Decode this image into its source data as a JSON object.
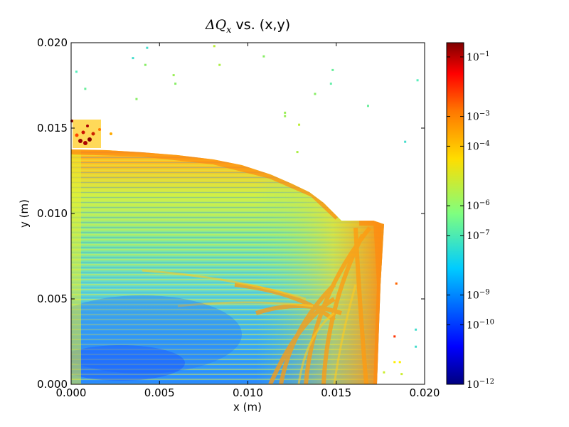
{
  "chart_data": {
    "type": "heatmap",
    "title_prefix": "ΔQ",
    "title_subscript": "x",
    "title_suffix": " vs. (x,y)",
    "xlabel": "x (m)",
    "ylabel": "y (m)",
    "xlim": [
      0.0,
      0.02
    ],
    "ylim": [
      0.0,
      0.02
    ],
    "x_ticks": [
      "0.000",
      "0.005",
      "0.010",
      "0.015",
      "0.020"
    ],
    "y_ticks": [
      "0.000",
      "0.005",
      "0.010",
      "0.015",
      "0.020"
    ],
    "x_tick_values": [
      0.0,
      0.005,
      0.01,
      0.015,
      0.02
    ],
    "y_tick_values": [
      0.0,
      0.005,
      0.01,
      0.015,
      0.02
    ],
    "colorbar": {
      "scale": "log",
      "range": [
        1e-12,
        0.3
      ],
      "tick_labels": [
        {
          "base": "10",
          "exp": "−1",
          "value": 0.1
        },
        {
          "base": "10",
          "exp": "−3",
          "value": 0.001
        },
        {
          "base": "10",
          "exp": "−4",
          "value": 0.0001
        },
        {
          "base": "10",
          "exp": "−6",
          "value": 1e-06
        },
        {
          "base": "10",
          "exp": "−7",
          "value": 1e-07
        },
        {
          "base": "10",
          "exp": "−9",
          "value": 1e-09
        },
        {
          "base": "10",
          "exp": "−10",
          "value": 1e-10
        },
        {
          "base": "10",
          "exp": "−12",
          "value": 1e-12
        }
      ],
      "colormap": "jet"
    },
    "scattered_points": [
      {
        "x": 0.0003,
        "y": 0.0183,
        "c": "#55eebb"
      },
      {
        "x": 0.0008,
        "y": 0.0173,
        "c": "#66ee99"
      },
      {
        "x": 0.0035,
        "y": 0.0191,
        "c": "#44ddcc"
      },
      {
        "x": 0.0043,
        "y": 0.0197,
        "c": "#44ddcc"
      },
      {
        "x": 0.0042,
        "y": 0.0187,
        "c": "#88ee66"
      },
      {
        "x": 0.0058,
        "y": 0.0181,
        "c": "#99ee55"
      },
      {
        "x": 0.0059,
        "y": 0.0176,
        "c": "#88ee66"
      },
      {
        "x": 0.0081,
        "y": 0.0198,
        "c": "#bbee33"
      },
      {
        "x": 0.0084,
        "y": 0.0187,
        "c": "#aaee44"
      },
      {
        "x": 0.0109,
        "y": 0.0192,
        "c": "#88ee66"
      },
      {
        "x": 0.0037,
        "y": 0.0167,
        "c": "#88ee66"
      },
      {
        "x": 0.0138,
        "y": 0.017,
        "c": "#88ee66"
      },
      {
        "x": 0.0147,
        "y": 0.0176,
        "c": "#66eeaa"
      },
      {
        "x": 0.0148,
        "y": 0.0184,
        "c": "#66ee99"
      },
      {
        "x": 0.0168,
        "y": 0.0163,
        "c": "#66ee99"
      },
      {
        "x": 0.0196,
        "y": 0.0178,
        "c": "#55eebb"
      },
      {
        "x": 0.0189,
        "y": 0.0142,
        "c": "#44ddcc"
      },
      {
        "x": 0.0121,
        "y": 0.0159,
        "c": "#99ee55"
      },
      {
        "x": 0.0121,
        "y": 0.0157,
        "c": "#99ee55"
      },
      {
        "x": 0.0129,
        "y": 0.0152,
        "c": "#bbee33"
      },
      {
        "x": 0.0128,
        "y": 0.0136,
        "c": "#aaee44"
      },
      {
        "x": 0.0195,
        "y": 0.0032,
        "c": "#44ddcc"
      },
      {
        "x": 0.0195,
        "y": 0.0022,
        "c": "#44ddcc"
      },
      {
        "x": 0.0183,
        "y": 0.0028,
        "c": "#ff3300"
      },
      {
        "x": 0.0183,
        "y": 0.0013,
        "c": "#ffee00"
      },
      {
        "x": 0.0186,
        "y": 0.0013,
        "c": "#ffee00"
      },
      {
        "x": 0.0187,
        "y": 0.0006,
        "c": "#ccee33"
      },
      {
        "x": 0.0177,
        "y": 0.0007,
        "c": "#ccee33"
      },
      {
        "x": 0.0184,
        "y": 0.0059,
        "c": "#ff6600"
      }
    ]
  }
}
